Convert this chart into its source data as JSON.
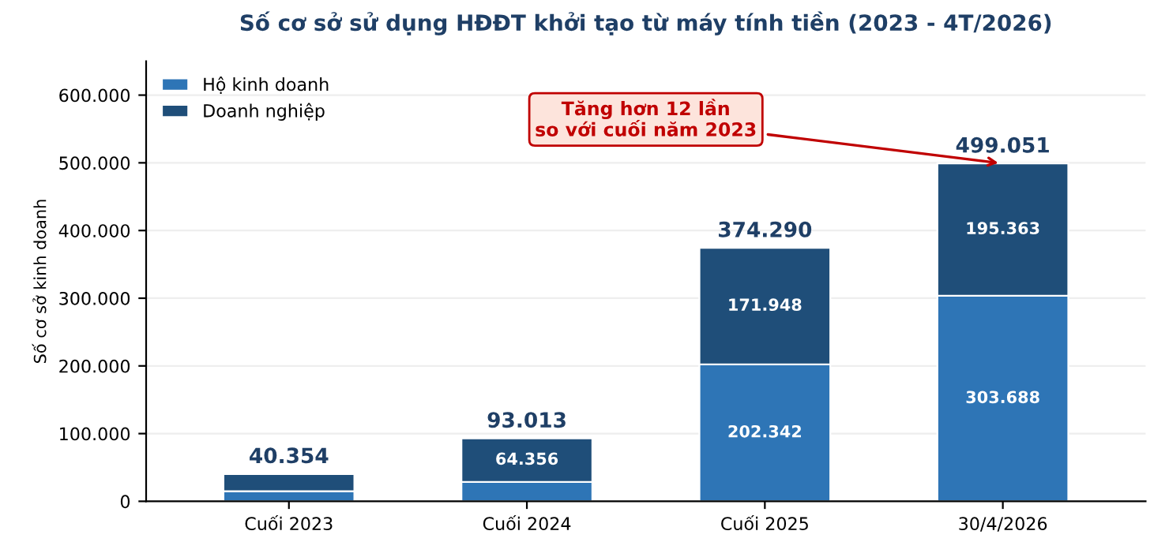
{
  "chart_data": {
    "type": "bar",
    "stacked": true,
    "title": "Số cơ sở sử dụng HĐĐT khởi tạo từ máy tính tiền (2023 - 4T/2026)",
    "ylabel": "Số cơ sở kinh doanh",
    "categories": [
      "Cuối 2023",
      "Cuối 2024",
      "Cuối 2025",
      "30/4/2026"
    ],
    "series": [
      {
        "name": "Hộ kinh doanh",
        "color": "#2e75b6",
        "values": [
          15000,
          28657,
          202342,
          303688
        ],
        "value_labels": [
          null,
          null,
          "202.342",
          "303.688"
        ]
      },
      {
        "name": "Doanh nghiệp",
        "color": "#1f4e79",
        "values": [
          25354,
          64356,
          171948,
          195363
        ],
        "value_labels": [
          null,
          "64.356",
          "171.948",
          "195.363"
        ]
      }
    ],
    "totals": [
      "40.354",
      "93.013",
      "374.290",
      "499.051"
    ],
    "ylim": [
      0,
      650000
    ],
    "yticks": [
      {
        "value": 0,
        "label": "0"
      },
      {
        "value": 100000,
        "label": "100.000"
      },
      {
        "value": 200000,
        "label": "200.000"
      },
      {
        "value": 300000,
        "label": "300.000"
      },
      {
        "value": 400000,
        "label": "400.000"
      },
      {
        "value": 500000,
        "label": "500.000"
      },
      {
        "value": 600000,
        "label": "600.000"
      }
    ],
    "annotations": [
      {
        "text": "Tăng hơn 12 lần\nso với cuối năm 2023",
        "x": "30/4/2026",
        "y": 499051
      }
    ],
    "grid": "y",
    "legend": "top left"
  }
}
